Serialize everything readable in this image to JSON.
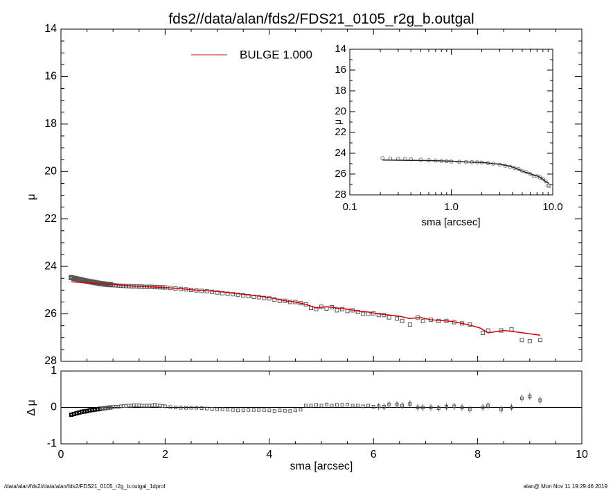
{
  "title": "fds2//data/alan/fds2/FDS21_0105_r2g_b.outgal",
  "footer": {
    "left": "/data/alan/fds2//data/alan/fds2/FDS21_0105_r2g_b.outgal_1dprof",
    "right": "alan@  Mon Nov 11 19:29:46 2019"
  },
  "colors": {
    "model": "#d40000",
    "data": "#555555",
    "axis": "#000000"
  },
  "chart_data": [
    {
      "type": "scatter",
      "panel": "main",
      "xlabel": "sma [arcsec]",
      "ylabel": "μ",
      "xlim": [
        0,
        10
      ],
      "ylim": [
        28,
        14
      ],
      "y_inverted": true,
      "xticks": [
        0,
        2,
        4,
        6,
        8,
        10
      ],
      "yticks": [
        14,
        16,
        18,
        20,
        22,
        24,
        26,
        28
      ],
      "legend": {
        "placement": "top",
        "entries": [
          {
            "name": "BULGE  1.000",
            "color": "#d40000"
          }
        ]
      },
      "series": [
        {
          "name": "data",
          "marker": "square",
          "x": [
            0.2,
            0.25,
            0.3,
            0.35,
            0.4,
            0.45,
            0.5,
            0.55,
            0.6,
            0.65,
            0.7,
            0.75,
            0.8,
            0.85,
            0.9,
            0.95,
            1.0,
            1.05,
            1.1,
            1.15,
            1.2,
            1.25,
            1.3,
            1.35,
            1.4,
            1.45,
            1.5,
            1.55,
            1.6,
            1.65,
            1.7,
            1.75,
            1.8,
            1.85,
            1.9,
            1.95,
            2.0,
            2.1,
            2.2,
            2.3,
            2.4,
            2.5,
            2.6,
            2.7,
            2.8,
            2.9,
            3.0,
            3.1,
            3.2,
            3.3,
            3.4,
            3.5,
            3.6,
            3.7,
            3.8,
            3.9,
            4.0,
            4.1,
            4.2,
            4.3,
            4.4,
            4.5,
            4.6,
            4.7,
            4.8,
            4.9,
            5.0,
            5.1,
            5.2,
            5.3,
            5.4,
            5.5,
            5.6,
            5.7,
            5.8,
            5.9,
            6.0,
            6.1,
            6.2,
            6.3,
            6.45,
            6.55,
            6.7,
            6.85,
            6.95,
            7.1,
            7.25,
            7.4,
            7.55,
            7.7,
            7.85,
            8.1,
            8.2,
            8.45,
            8.65,
            8.85,
            9.0,
            9.2
          ],
          "y": [
            24.47,
            24.5,
            24.52,
            24.55,
            24.57,
            24.6,
            24.62,
            24.64,
            24.66,
            24.68,
            24.7,
            24.72,
            24.73,
            24.75,
            24.76,
            24.77,
            24.79,
            24.8,
            24.81,
            24.82,
            24.82,
            24.83,
            24.83,
            24.84,
            24.84,
            24.84,
            24.85,
            24.85,
            24.86,
            24.86,
            24.86,
            24.86,
            24.87,
            24.87,
            24.88,
            24.88,
            24.89,
            24.91,
            24.93,
            24.95,
            24.97,
            24.99,
            25.01,
            25.03,
            25.05,
            25.07,
            25.1,
            25.13,
            25.15,
            25.17,
            25.2,
            25.22,
            25.25,
            25.28,
            25.3,
            25.33,
            25.35,
            25.4,
            25.45,
            25.45,
            25.5,
            25.5,
            25.55,
            25.6,
            25.75,
            25.8,
            25.7,
            25.78,
            25.72,
            25.85,
            25.8,
            25.88,
            25.85,
            25.92,
            26.0,
            26.0,
            25.98,
            26.05,
            26.05,
            26.15,
            26.2,
            26.3,
            26.45,
            26.15,
            26.3,
            26.25,
            26.3,
            26.3,
            26.35,
            26.4,
            26.45,
            26.8,
            26.7,
            26.7,
            26.65,
            27.1,
            27.15,
            27.1
          ]
        },
        {
          "name": "BULGE  1.000",
          "marker": "line",
          "x": [
            0.2,
            0.6,
            1.0,
            1.4,
            1.8,
            2.2,
            2.6,
            3.0,
            3.4,
            3.8,
            4.1,
            4.3,
            4.5,
            4.7,
            4.9,
            5.1,
            5.3,
            5.5,
            5.7,
            5.9,
            6.1,
            6.3,
            6.5,
            6.7,
            6.9,
            7.1,
            7.3,
            7.5,
            7.7,
            7.9,
            8.05,
            8.2,
            8.35,
            8.5,
            8.7,
            9.2
          ],
          "y": [
            24.65,
            24.7,
            24.76,
            24.83,
            24.87,
            24.92,
            25.0,
            25.05,
            25.15,
            25.25,
            25.35,
            25.45,
            25.5,
            25.6,
            25.75,
            25.7,
            25.75,
            25.8,
            25.88,
            25.92,
            26.0,
            26.05,
            26.1,
            26.2,
            26.15,
            26.25,
            26.28,
            26.32,
            26.4,
            26.5,
            26.6,
            26.8,
            26.75,
            26.7,
            26.75,
            26.9
          ]
        }
      ]
    },
    {
      "type": "scatter",
      "panel": "residual",
      "xlabel": "sma [arcsec]",
      "ylabel": "Δ μ",
      "xlim": [
        0,
        10
      ],
      "ylim": [
        -1,
        1
      ],
      "xticks": [
        0,
        2,
        4,
        6,
        8,
        10
      ],
      "yticks": [
        -1,
        0,
        1
      ],
      "series": [
        {
          "name": "residual",
          "x": [
            0.2,
            0.25,
            0.3,
            0.35,
            0.4,
            0.45,
            0.5,
            0.55,
            0.6,
            0.65,
            0.7,
            0.75,
            0.8,
            0.85,
            0.9,
            0.95,
            1.0,
            1.05,
            1.1,
            1.15,
            1.2,
            1.25,
            1.3,
            1.35,
            1.4,
            1.45,
            1.5,
            1.55,
            1.6,
            1.65,
            1.7,
            1.75,
            1.8,
            1.85,
            1.9,
            1.95,
            2.0,
            2.1,
            2.2,
            2.3,
            2.4,
            2.5,
            2.6,
            2.7,
            2.8,
            2.9,
            3.0,
            3.1,
            3.2,
            3.3,
            3.4,
            3.5,
            3.6,
            3.7,
            3.8,
            3.9,
            4.0,
            4.1,
            4.2,
            4.3,
            4.4,
            4.5,
            4.6,
            4.7,
            4.8,
            4.9,
            5.0,
            5.1,
            5.2,
            5.3,
            5.4,
            5.5,
            5.6,
            5.7,
            5.8,
            5.9,
            6.0,
            6.1,
            6.2,
            6.3,
            6.45,
            6.55,
            6.7,
            6.85,
            6.95,
            7.1,
            7.25,
            7.4,
            7.55,
            7.7,
            7.85,
            8.1,
            8.2,
            8.45,
            8.65,
            8.85,
            9.0,
            9.2
          ],
          "y": [
            -0.2,
            -0.18,
            -0.16,
            -0.14,
            -0.12,
            -0.11,
            -0.1,
            -0.08,
            -0.07,
            -0.06,
            -0.05,
            -0.04,
            -0.03,
            -0.02,
            -0.01,
            0.0,
            0.01,
            0.02,
            0.02,
            0.03,
            0.04,
            0.04,
            0.05,
            0.05,
            0.06,
            0.06,
            0.06,
            0.05,
            0.05,
            0.05,
            0.05,
            0.06,
            0.07,
            0.06,
            0.05,
            0.04,
            0.03,
            0.01,
            0.0,
            -0.01,
            -0.01,
            -0.01,
            -0.01,
            -0.02,
            -0.03,
            -0.04,
            -0.05,
            -0.05,
            -0.06,
            -0.07,
            -0.08,
            -0.08,
            -0.07,
            -0.07,
            -0.07,
            -0.07,
            -0.08,
            -0.1,
            -0.08,
            -0.09,
            -0.1,
            -0.08,
            -0.06,
            0.05,
            0.05,
            0.07,
            0.05,
            0.08,
            0.05,
            0.07,
            0.07,
            0.08,
            0.05,
            0.05,
            0.03,
            0.05,
            0.02,
            0.03,
            0.02,
            0.08,
            0.08,
            0.05,
            0.1,
            0.0,
            0.0,
            0.0,
            -0.02,
            0.02,
            0.03,
            0.0,
            -0.05,
            0.0,
            0.05,
            -0.05,
            0.0,
            0.25,
            0.3,
            0.2
          ]
        }
      ]
    },
    {
      "type": "scatter",
      "panel": "inset",
      "xlabel": "sma [arcsec]",
      "ylabel": "μ",
      "xscale": "log",
      "xlim": [
        0.1,
        10
      ],
      "ylim": [
        28,
        14
      ],
      "y_inverted": true,
      "xticks": [
        0.1,
        1.0,
        10.0
      ],
      "xtick_labels": [
        "0.1",
        "1.0",
        "10.0"
      ],
      "yticks": [
        14,
        16,
        18,
        20,
        22,
        24,
        26,
        28
      ],
      "series": [
        {
          "name": "data",
          "x": [
            0.21,
            0.25,
            0.3,
            0.35,
            0.4,
            0.5,
            0.6,
            0.7,
            0.8,
            0.9,
            1.0,
            1.2,
            1.4,
            1.6,
            1.8,
            2.0,
            2.3,
            2.6,
            3.0,
            3.4,
            3.8,
            4.2,
            4.6,
            5.0,
            5.5,
            6.0,
            6.5,
            7.0,
            7.5,
            8.0,
            8.5,
            9.0,
            9.2
          ],
          "y": [
            24.47,
            24.5,
            24.52,
            24.55,
            24.57,
            24.62,
            24.66,
            24.7,
            24.73,
            24.76,
            24.79,
            24.82,
            24.84,
            24.85,
            24.87,
            24.89,
            24.94,
            25.0,
            25.1,
            25.2,
            25.3,
            25.43,
            25.5,
            25.7,
            25.8,
            25.99,
            26.2,
            26.2,
            26.32,
            26.45,
            26.7,
            27.1,
            27.15
          ]
        },
        {
          "name": "model",
          "x": [
            0.21,
            0.3,
            0.4,
            0.6,
            0.8,
            1.0,
            1.4,
            1.8,
            2.2,
            2.6,
            3.0,
            3.4,
            3.8,
            4.2,
            4.6,
            5.0,
            5.5,
            6.0,
            6.5,
            7.0,
            7.5,
            8.0,
            8.5,
            9.0,
            9.2
          ],
          "y": [
            24.65,
            24.67,
            24.68,
            24.7,
            24.73,
            24.76,
            24.83,
            24.87,
            24.92,
            25.0,
            25.05,
            25.15,
            25.25,
            25.4,
            25.55,
            25.72,
            25.85,
            25.98,
            26.1,
            26.18,
            26.3,
            26.5,
            26.72,
            26.85,
            26.9
          ]
        }
      ]
    }
  ]
}
